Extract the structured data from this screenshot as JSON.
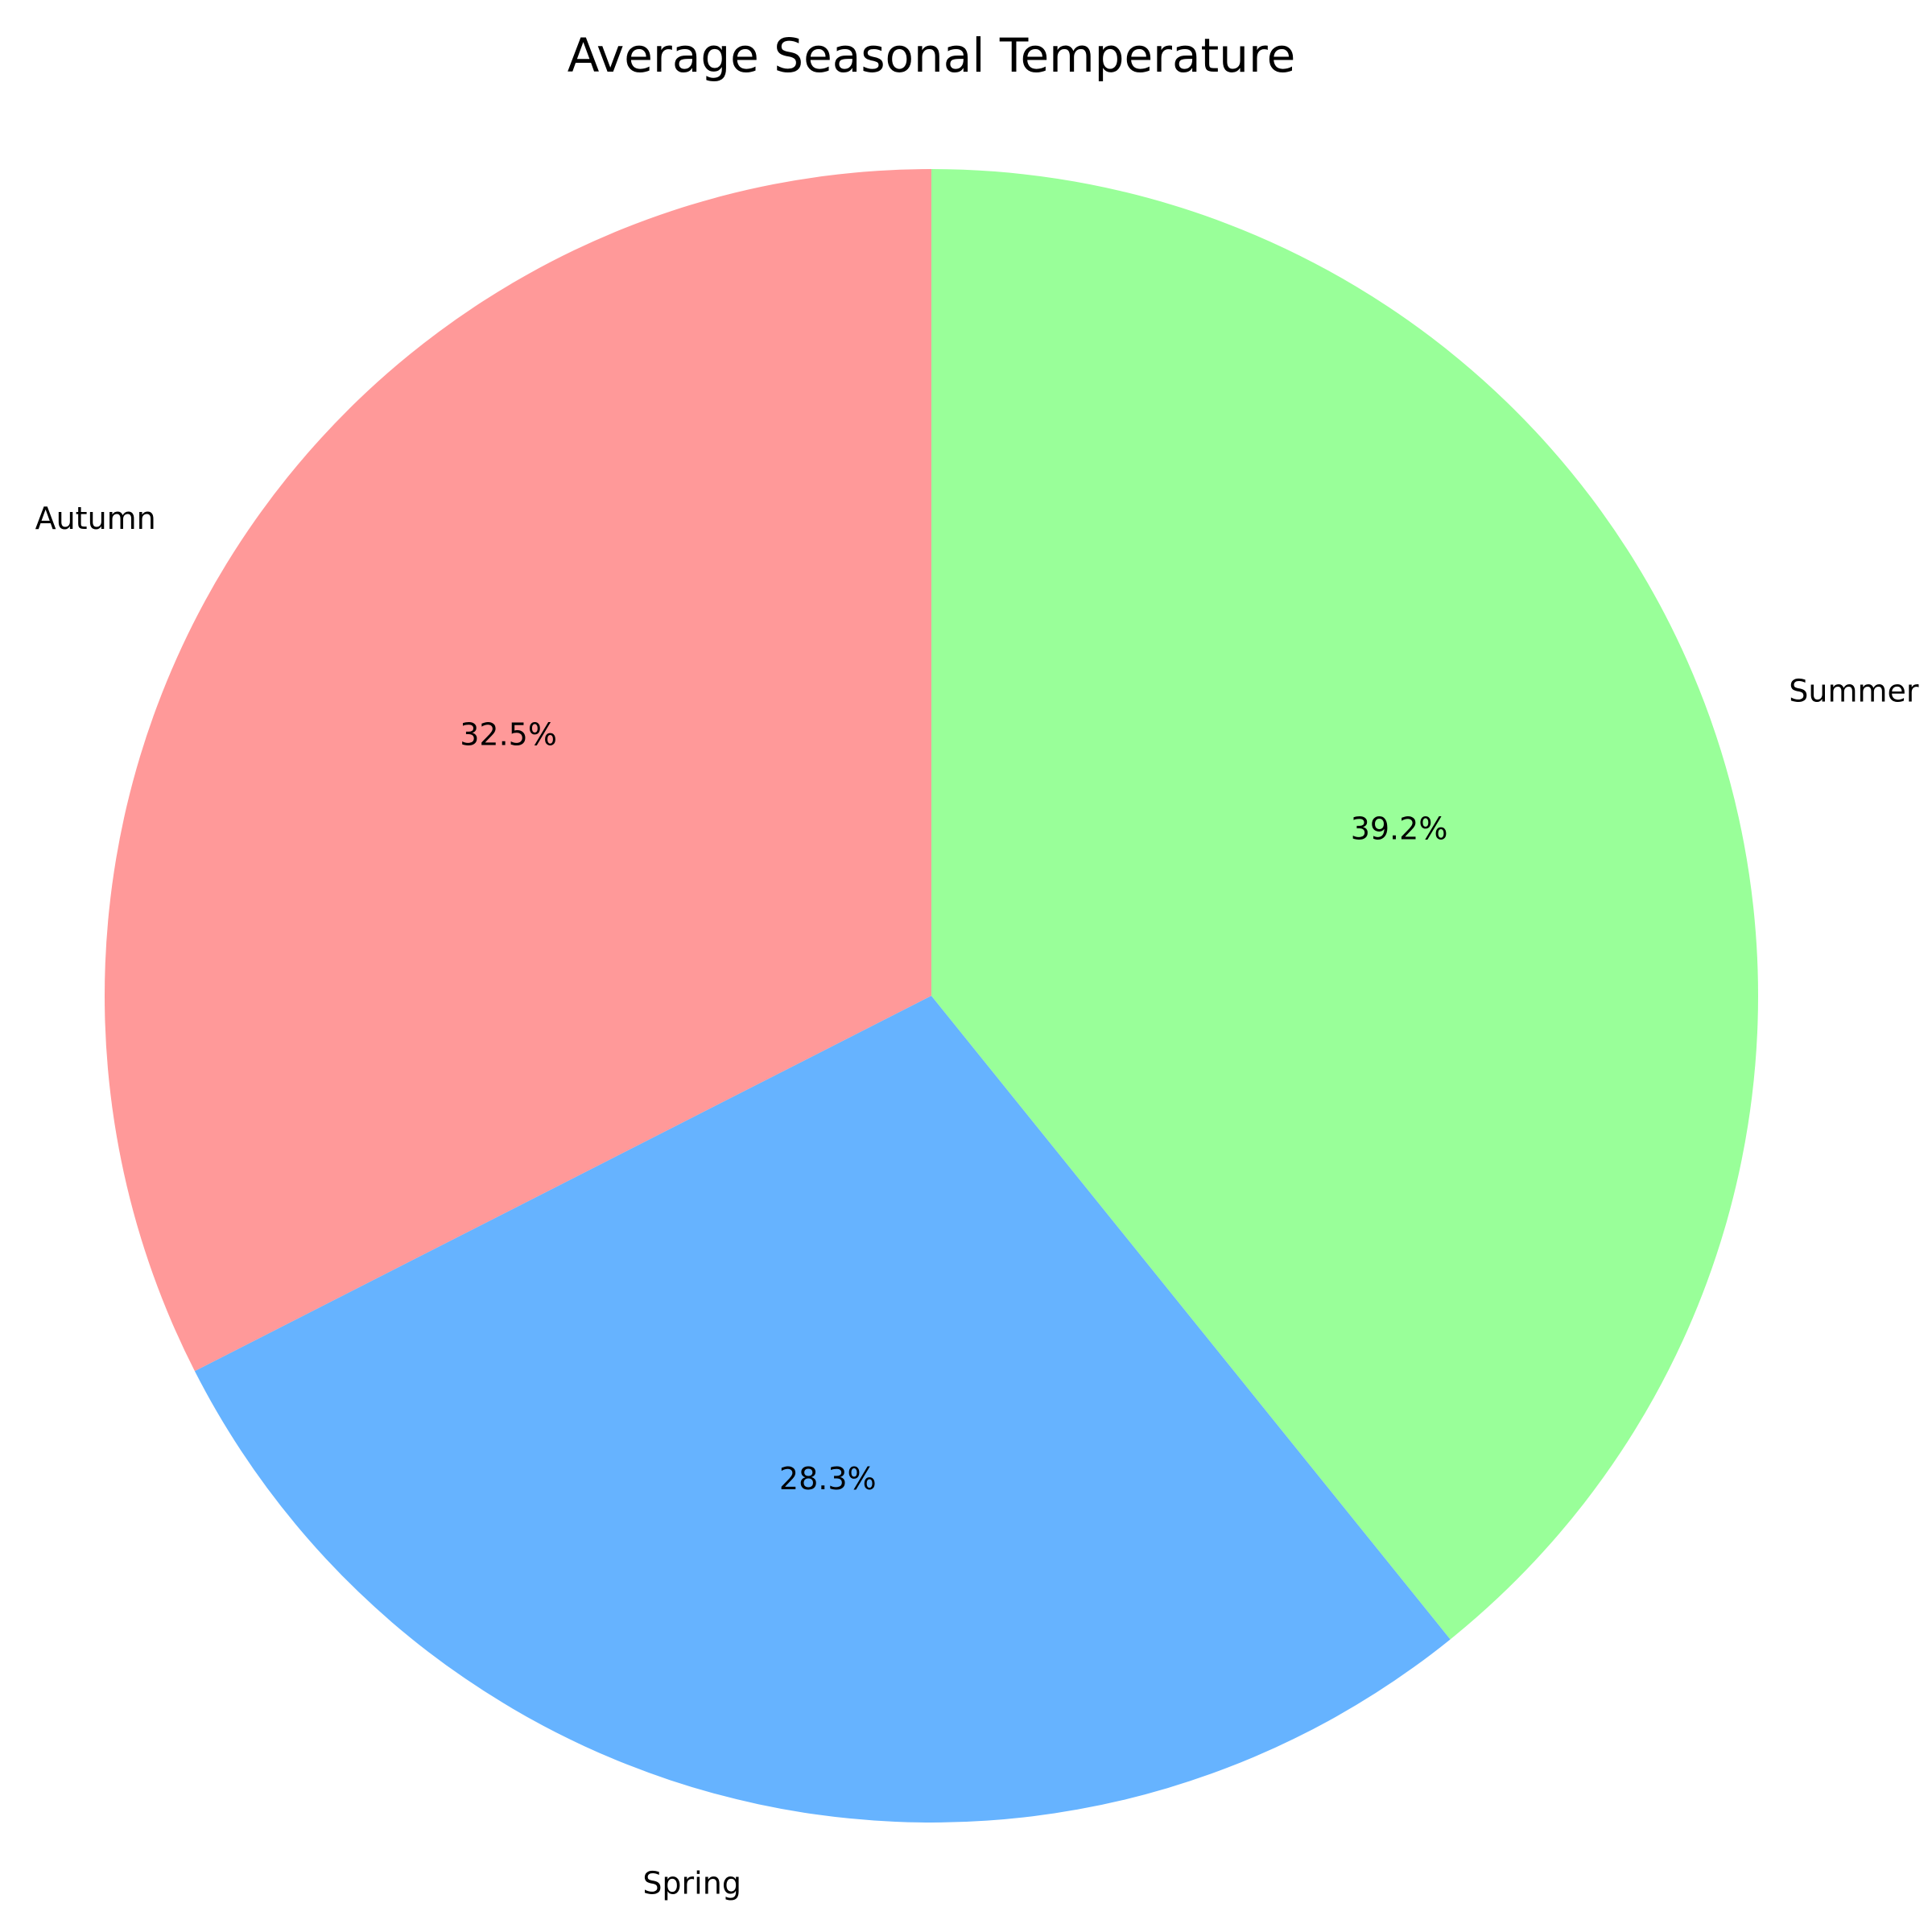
{
  "chart_data": {
    "type": "pie",
    "title": "Average Seasonal Temperature",
    "categories": [
      "Spring",
      "Summer",
      "Autumn"
    ],
    "values": [
      28.3,
      39.2,
      32.5
    ],
    "percent_labels": [
      "28.3%",
      "39.2%",
      "32.5%"
    ],
    "colors": [
      "#66b3ff",
      "#99ff99",
      "#ff9999"
    ],
    "start_angle_deg": 90,
    "direction": "counterclockwise",
    "slice_order": [
      "Autumn",
      "Spring",
      "Summer"
    ]
  }
}
